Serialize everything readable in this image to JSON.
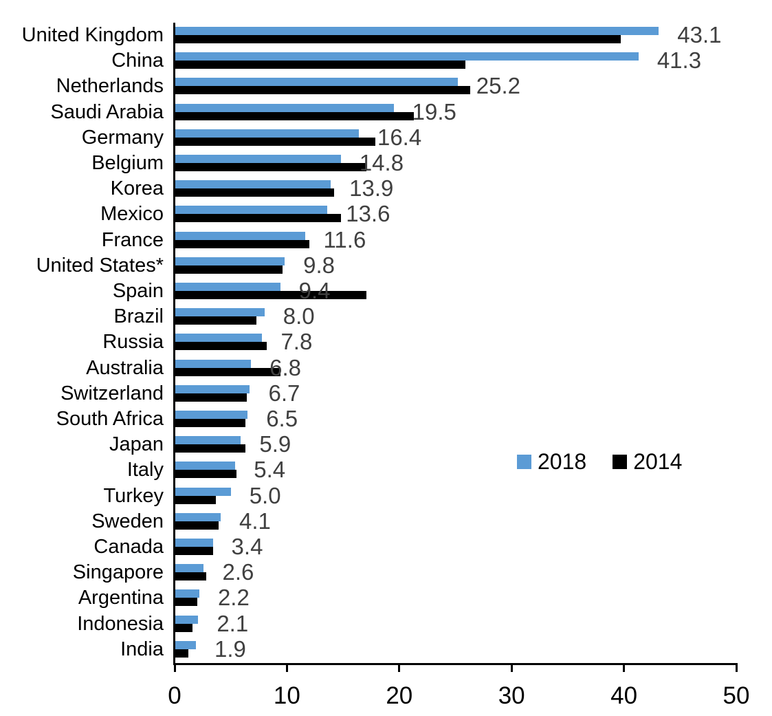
{
  "chart_data": {
    "type": "bar",
    "orientation": "horizontal",
    "title": "",
    "xlabel": "",
    "ylabel": "",
    "categories": [
      "United Kingdom",
      "China",
      "Netherlands",
      "Saudi Arabia",
      "Germany",
      "Belgium",
      "Korea",
      "Mexico",
      "France",
      "United States*",
      "Spain",
      "Brazil",
      "Russia",
      "Australia",
      "Switzerland",
      "South Africa",
      "Japan",
      "Italy",
      "Turkey",
      "Sweden",
      "Canada",
      "Singapore",
      "Argentina",
      "Indonesia",
      "India"
    ],
    "series": [
      {
        "name": "2018",
        "color": "#5B9BD5",
        "values": [
          43.1,
          41.3,
          25.2,
          19.5,
          16.4,
          14.8,
          13.9,
          13.6,
          11.6,
          9.8,
          9.4,
          8.0,
          7.8,
          6.8,
          6.7,
          6.5,
          5.9,
          5.4,
          5.0,
          4.1,
          3.4,
          2.6,
          2.2,
          2.1,
          1.9
        ]
      },
      {
        "name": "2014",
        "color": "#000000",
        "values": [
          39.7,
          25.9,
          26.3,
          21.3,
          17.9,
          17.1,
          14.2,
          14.8,
          12.0,
          9.6,
          17.1,
          7.3,
          8.2,
          9.4,
          6.4,
          6.3,
          6.3,
          5.5,
          3.7,
          3.9,
          3.4,
          2.8,
          2.0,
          1.6,
          1.2
        ]
      }
    ],
    "data_labels": [
      "43.1",
      "41.3",
      "25.2",
      "19.5",
      "16.4",
      "14.8",
      "13.9",
      "13.6",
      "11.6",
      "9.8",
      "9.4",
      "8.0",
      "7.8",
      "6.8",
      "6.7",
      "6.5",
      "5.9",
      "5.4",
      "5.0",
      "4.1",
      "3.4",
      "2.6",
      "2.2",
      "2.1",
      "1.9"
    ],
    "data_labels_for_series": "2018",
    "data_label_color": "#404040",
    "xlim": [
      0,
      50
    ],
    "x_ticks": [
      "0",
      "10",
      "20",
      "30",
      "40",
      "50"
    ],
    "legend": [
      "2018",
      "2014"
    ],
    "legend_position": "center-right",
    "grid": false
  }
}
